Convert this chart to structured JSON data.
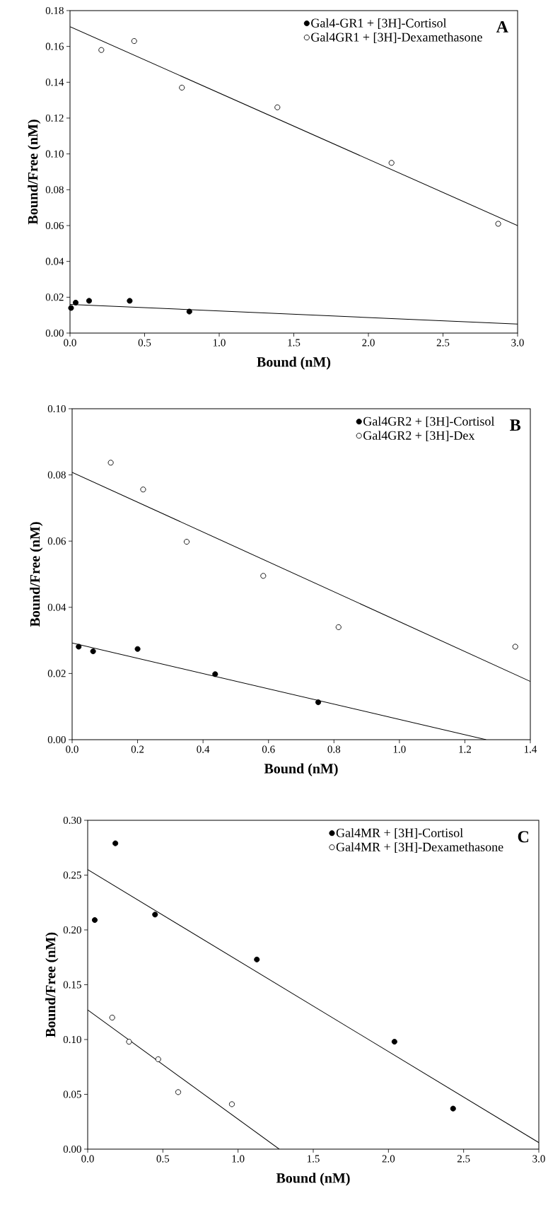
{
  "chart_data": [
    {
      "type": "scatter",
      "xlabel": "Bound (nM)",
      "ylabel": "Bound/Free (nM)",
      "annotations": [
        "A"
      ],
      "legend": "top right",
      "marker": "circle",
      "xlim": [
        0,
        3
      ],
      "ylim": [
        0,
        0.18
      ],
      "xticks": [
        {
          "value": 0,
          "label": "0.0"
        },
        {
          "value": 0.5,
          "label": "0.5"
        },
        {
          "value": 1,
          "label": "1.0"
        },
        {
          "value": 1.5,
          "label": "1.5"
        },
        {
          "value": 2,
          "label": "2.0"
        },
        {
          "value": 2.5,
          "label": "2.5"
        },
        {
          "value": 3,
          "label": "3.0"
        }
      ],
      "yticks": [
        {
          "value": 0,
          "label": "0.00"
        },
        {
          "value": 0.02,
          "label": "0.02"
        },
        {
          "value": 0.04,
          "label": "0.04"
        },
        {
          "value": 0.06,
          "label": "0.06"
        },
        {
          "value": 0.08,
          "label": "0.08"
        },
        {
          "value": 0.1,
          "label": "0.10"
        },
        {
          "value": 0.12,
          "label": "0.12"
        },
        {
          "value": 0.14,
          "label": "0.14"
        },
        {
          "value": 0.16,
          "label": "0.16"
        },
        {
          "value": 0.18,
          "label": "0.18"
        }
      ],
      "series": [
        {
          "name": "Gal4-GR1 + [3H]-Cortisol",
          "color": "#000000",
          "x": [
            0.007,
            0.038,
            0.128,
            0.4,
            0.8
          ],
          "values": [
            0.014,
            0.017,
            0.018,
            0.018,
            0.012
          ]
        },
        {
          "name": "Gal4GR1 + [3H]-Dexamethasone",
          "color": "#ffffff",
          "x": [
            0.21,
            0.43,
            0.75,
            1.39,
            2.155,
            2.87
          ],
          "values": [
            0.158,
            0.163,
            0.137,
            0.126,
            0.095,
            0.061
          ]
        },
        {
          "type": "line",
          "color": "#000000",
          "marker": "none",
          "x": [
            0,
            3
          ],
          "values": [
            0.016,
            0.005
          ]
        },
        {
          "type": "line",
          "color": "#000000",
          "marker": "none",
          "x": [
            0,
            3
          ],
          "values": [
            0.171,
            0.06
          ]
        }
      ]
    },
    {
      "type": "scatter",
      "xlabel": "Bound (nM)",
      "ylabel": "Bound/Free (nM)",
      "annotations": [
        "B"
      ],
      "legend": "top right",
      "marker": "circle",
      "xlim": [
        0,
        1.4
      ],
      "ylim": [
        0,
        0.1
      ],
      "xticks": [
        {
          "value": 0,
          "label": "0.0"
        },
        {
          "value": 0.2,
          "label": "0.2"
        },
        {
          "value": 0.4,
          "label": "0.4"
        },
        {
          "value": 0.6,
          "label": "0.6"
        },
        {
          "value": 0.8,
          "label": "0.8"
        },
        {
          "value": 1,
          "label": "1.0"
        },
        {
          "value": 1.2,
          "label": "1.2"
        },
        {
          "value": 1.4,
          "label": "1.4"
        }
      ],
      "yticks": [
        {
          "value": 0,
          "label": "0.00"
        },
        {
          "value": 0.02,
          "label": "0.02"
        },
        {
          "value": 0.04,
          "label": "0.04"
        },
        {
          "value": 0.06,
          "label": "0.06"
        },
        {
          "value": 0.08,
          "label": "0.08"
        },
        {
          "value": 0.1,
          "label": "0.10"
        }
      ],
      "series": [
        {
          "name": "Gal4GR2 + [3H]-Cortisol",
          "color": "#000000",
          "x": [
            0.02,
            0.064,
            0.2,
            0.437,
            0.752
          ],
          "values": [
            0.0281,
            0.0267,
            0.0274,
            0.0198,
            0.0113
          ]
        },
        {
          "name": "Gal4GR2 + [3H]-Dex",
          "color": "#ffffff",
          "x": [
            0.118,
            0.217,
            0.35,
            0.584,
            0.814,
            1.354
          ],
          "values": [
            0.0837,
            0.0756,
            0.0598,
            0.0495,
            0.034,
            0.0281
          ]
        },
        {
          "type": "line",
          "color": "#000000",
          "marker": "none",
          "x": [
            0,
            1.265
          ],
          "values": [
            0.0292,
            0
          ]
        },
        {
          "type": "line",
          "color": "#000000",
          "marker": "none",
          "x": [
            0,
            1.4
          ],
          "values": [
            0.0808,
            0.0176
          ]
        }
      ]
    },
    {
      "type": "scatter",
      "xlabel": "Bound (nM)",
      "ylabel": "Bound/Free (nM)",
      "annotations": [
        "C"
      ],
      "legend": "top right",
      "marker": "circle",
      "xlim": [
        0,
        3
      ],
      "ylim": [
        0,
        0.3
      ],
      "xticks": [
        {
          "value": 0,
          "label": "0.0"
        },
        {
          "value": 0.5,
          "label": "0.5"
        },
        {
          "value": 1,
          "label": "1.0"
        },
        {
          "value": 1.5,
          "label": "1.5"
        },
        {
          "value": 2,
          "label": "2.0"
        },
        {
          "value": 2.5,
          "label": "2.5"
        },
        {
          "value": 3,
          "label": "3.0"
        }
      ],
      "yticks": [
        {
          "value": 0,
          "label": "0.00"
        },
        {
          "value": 0.05,
          "label": "0.05"
        },
        {
          "value": 0.1,
          "label": "0.10"
        },
        {
          "value": 0.15,
          "label": "0.15"
        },
        {
          "value": 0.2,
          "label": "0.20"
        },
        {
          "value": 0.25,
          "label": "0.25"
        },
        {
          "value": 0.3,
          "label": "0.30"
        }
      ],
      "series": [
        {
          "name": "Gal4MR + [3H]-Cortisol",
          "color": "#000000",
          "x": [
            0.047,
            0.184,
            0.448,
            1.125,
            2.04,
            2.43
          ],
          "values": [
            0.209,
            0.279,
            0.214,
            0.173,
            0.098,
            0.037
          ]
        },
        {
          "name": "Gal4MR + [3H]-Dexamethasone",
          "color": "#ffffff",
          "x": [
            0.163,
            0.275,
            0.469,
            0.602,
            0.959
          ],
          "values": [
            0.12,
            0.098,
            0.082,
            0.052,
            0.041
          ]
        },
        {
          "type": "line",
          "color": "#000000",
          "marker": "none",
          "x": [
            0,
            3
          ],
          "values": [
            0.255,
            0.006
          ]
        },
        {
          "type": "line",
          "color": "#000000",
          "marker": "none",
          "x": [
            0,
            1.274
          ],
          "values": [
            0.127,
            0
          ]
        }
      ]
    }
  ]
}
